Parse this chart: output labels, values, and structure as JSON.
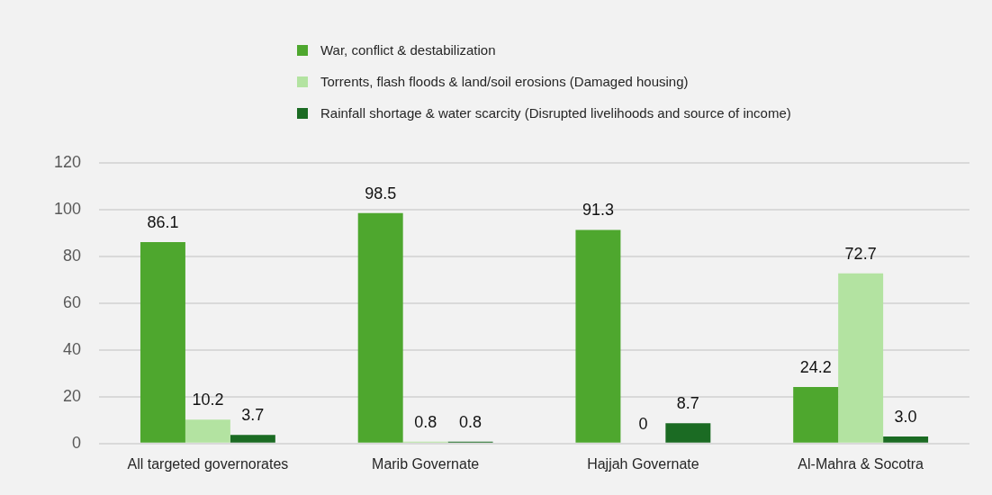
{
  "chart_data": {
    "type": "bar",
    "categories": [
      "All targeted governorates",
      "Marib Governate",
      "Hajjah Governate",
      "Al-Mahra & Socotra"
    ],
    "series": [
      {
        "name": "War, conflict & destabilization",
        "color": "#4ea72e",
        "values": [
          86.1,
          98.5,
          91.3,
          24.2
        ],
        "value_labels": [
          "86.1",
          "98.5",
          "91.3",
          "24.2"
        ]
      },
      {
        "name": "Torrents, flash floods & land/soil erosions (Damaged housing)",
        "color": "#b3e3a1",
        "values": [
          10.2,
          0.8,
          0,
          72.7
        ],
        "value_labels": [
          "10.2",
          "0.8",
          "0",
          "72.7"
        ]
      },
      {
        "name": "Rainfall shortage & water scarcity (Disrupted livelihoods and source of income)",
        "color": "#1b6b23",
        "values": [
          3.7,
          0.8,
          8.7,
          3.0
        ],
        "value_labels": [
          "3.7",
          "0.8",
          "8.7",
          "3.0"
        ]
      }
    ],
    "ylim": [
      0,
      120
    ],
    "yticks": [
      0,
      20,
      40,
      60,
      80,
      100,
      120
    ],
    "grid": "y",
    "legend": "top"
  }
}
